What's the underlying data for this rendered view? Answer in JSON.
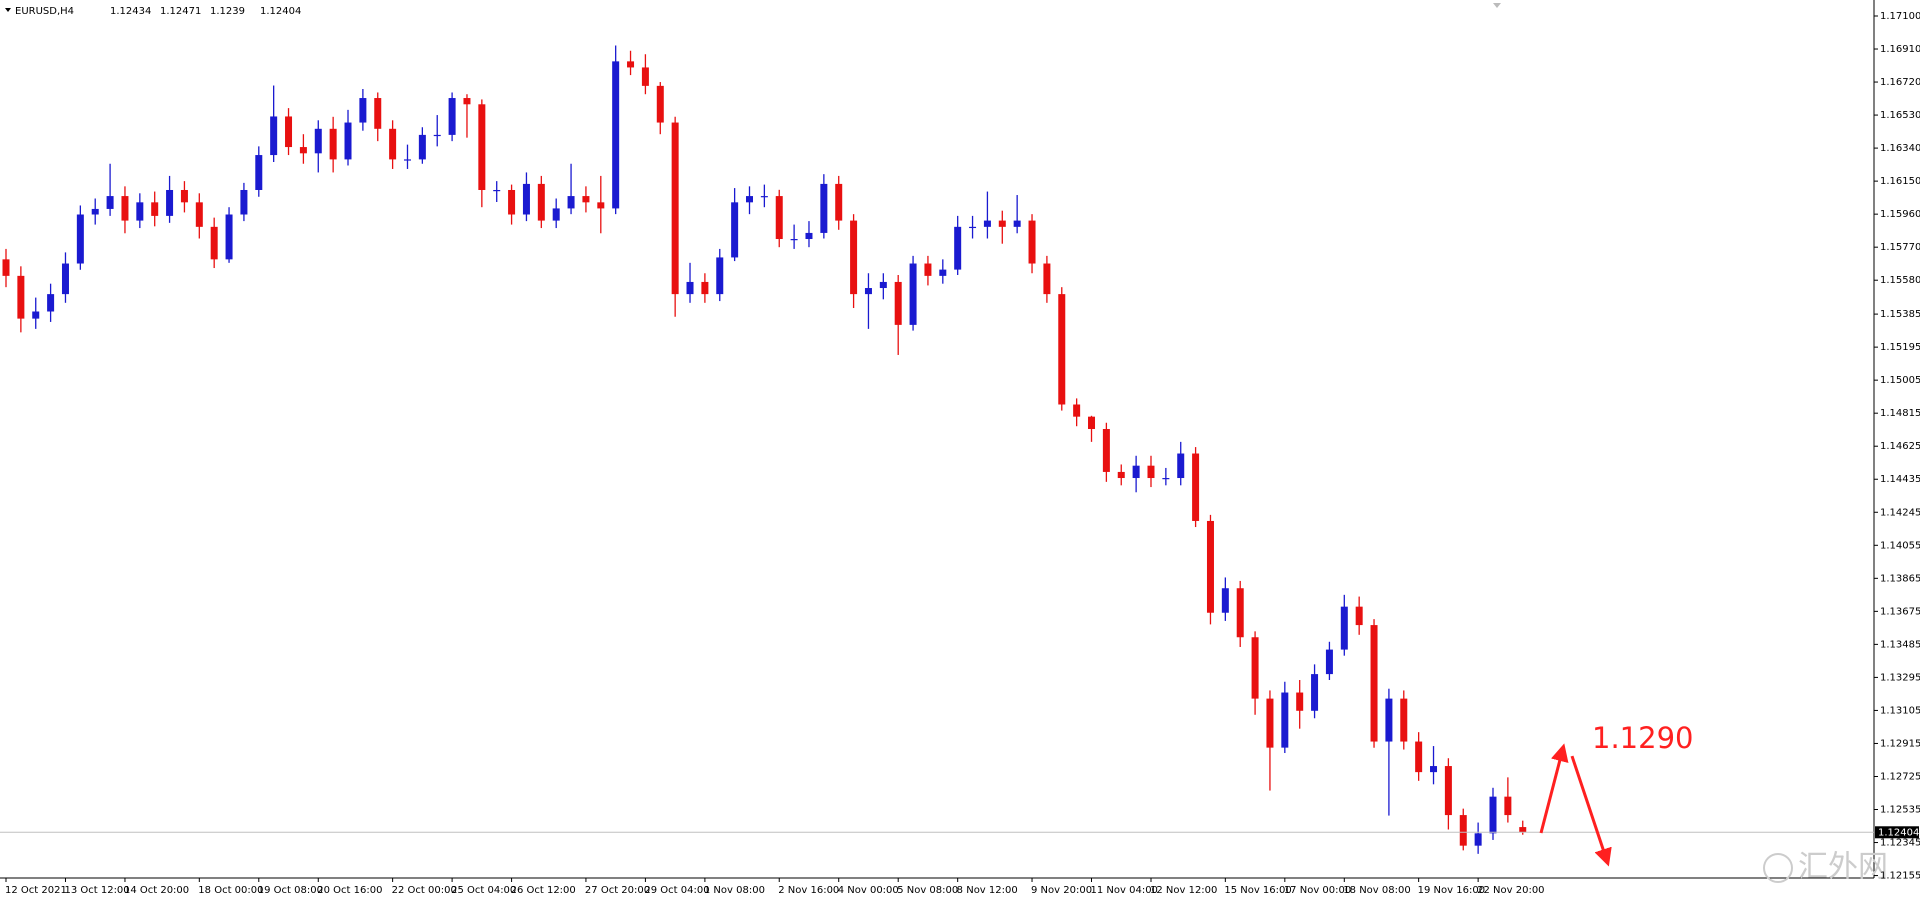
{
  "chart_data": {
    "type": "candlestick",
    "symbol": "EURUSD,H4",
    "up_color": "#1a1ad0",
    "down_color": "#e81010",
    "ylim": [
      1.12141,
      1.17192
    ],
    "yticks": [
      {
        "value": 1.171,
        "label": "1.17100"
      },
      {
        "value": 1.1691,
        "label": "1.16910"
      },
      {
        "value": 1.1672,
        "label": "1.16720"
      },
      {
        "value": 1.1653,
        "label": "1.16530"
      },
      {
        "value": 1.1634,
        "label": "1.16340"
      },
      {
        "value": 1.1615,
        "label": "1.16150"
      },
      {
        "value": 1.1596,
        "label": "1.15960"
      },
      {
        "value": 1.1577,
        "label": "1.15770"
      },
      {
        "value": 1.1558,
        "label": "1.15580"
      },
      1.15385,
      1.15195,
      1.15005,
      1.14815,
      1.14625,
      1.14435,
      1.14245,
      1.14055,
      1.13865,
      1.13675,
      1.13485,
      1.13295,
      1.13105,
      1.12915,
      1.12725,
      1.12535,
      1.12345,
      1.12155
    ],
    "categories": [
      "12 Oct 2021",
      null,
      null,
      null,
      "13 Oct 12:00",
      null,
      null,
      null,
      "14 Oct 20:00",
      null,
      null,
      null,
      null,
      "18 Oct 00:00",
      null,
      null,
      null,
      "19 Oct 08:00",
      null,
      null,
      null,
      "20 Oct 16:00",
      null,
      null,
      null,
      null,
      "22 Oct 00:00",
      null,
      null,
      null,
      "25 Oct 04:00",
      null,
      null,
      null,
      "26 Oct 12:00",
      null,
      null,
      null,
      null,
      "27 Oct 20:00",
      null,
      null,
      null,
      "29 Oct 04:00",
      null,
      null,
      null,
      "1 Nov 08:00",
      null,
      null,
      null,
      null,
      "2 Nov 16:00",
      null,
      null,
      null,
      "4 Nov 00:00",
      null,
      null,
      null,
      "5 Nov 08:00",
      null,
      null,
      null,
      "8 Nov 12:00",
      null,
      null,
      null,
      null,
      "9 Nov 20:00",
      null,
      null,
      null,
      "11 Nov 04:00",
      null,
      null,
      null,
      "12 Nov 12:00",
      null,
      null,
      null,
      null,
      "15 Nov 16:00",
      null,
      null,
      null,
      "17 Nov 00:00",
      null,
      null,
      null,
      "18 Nov 08:00",
      null,
      null,
      null,
      null,
      "19 Nov 16:00",
      null,
      null,
      null,
      "22 Nov 20:00",
      null,
      null,
      null
    ],
    "open": [
      1.157,
      1.15605,
      1.15359,
      1.154,
      1.155,
      1.15676,
      1.15958,
      1.1599,
      1.16064,
      1.15923,
      1.16028,
      1.1595,
      1.16099,
      1.16028,
      1.15887,
      1.157,
      1.15958,
      1.16099,
      1.163,
      1.16522,
      1.16346,
      1.1631,
      1.16451,
      1.16275,
      1.16487,
      1.16628,
      1.16451,
      1.16275,
      1.16275,
      1.16416,
      1.16416,
      1.16628,
      1.16592,
      1.16099,
      1.16099,
      1.15958,
      1.16134,
      1.15923,
      1.15993,
      1.16064,
      1.16028,
      1.15993,
      1.16839,
      1.16804,
      1.16698,
      1.16487,
      1.155,
      1.1557,
      1.155,
      1.15711,
      1.16028,
      1.16064,
      1.16064,
      1.15817,
      1.15817,
      1.15852,
      1.16134,
      1.15923,
      1.155,
      1.15535,
      1.1557,
      1.15323,
      1.15676,
      1.15605,
      1.15641,
      1.15887,
      1.15887,
      1.15923,
      1.15887,
      1.15923,
      1.15676,
      1.155,
      1.14865,
      1.14795,
      1.14724,
      1.14477,
      1.14442,
      1.14513,
      1.14442,
      1.14442,
      1.14583,
      1.14195,
      1.13667,
      1.13808,
      1.13526,
      1.13173,
      1.12891,
      1.13208,
      1.13103,
      1.13314,
      1.13455,
      1.13702,
      1.13596,
      1.12926,
      1.13173,
      1.12926,
      1.1275,
      1.12785,
      1.12503,
      1.12327,
      1.12398,
      1.12609,
      1.12434
    ],
    "high": [
      1.1576,
      1.1566,
      1.1548,
      1.1556,
      1.1574,
      1.1601,
      1.1605,
      1.1625,
      1.1612,
      1.1608,
      1.1609,
      1.1618,
      1.1615,
      1.1608,
      1.1594,
      1.16,
      1.1614,
      1.1635,
      1.167,
      1.1657,
      1.1642,
      1.165,
      1.1652,
      1.1656,
      1.1668,
      1.1666,
      1.165,
      1.1636,
      1.1646,
      1.1653,
      1.1666,
      1.1665,
      1.1662,
      1.1615,
      1.1613,
      1.162,
      1.1618,
      1.1605,
      1.1625,
      1.1612,
      1.1618,
      1.1693,
      1.169,
      1.1688,
      1.1672,
      1.1652,
      1.1568,
      1.1562,
      1.1576,
      1.1611,
      1.1612,
      1.1613,
      1.161,
      1.159,
      1.1592,
      1.1619,
      1.1618,
      1.1596,
      1.1562,
      1.1562,
      1.1561,
      1.1572,
      1.1572,
      1.157,
      1.1595,
      1.1595,
      1.1609,
      1.1598,
      1.1607,
      1.1596,
      1.1572,
      1.1554,
      1.149,
      1.148,
      1.1476,
      1.1452,
      1.1457,
      1.1457,
      1.145,
      1.1465,
      1.1462,
      1.1423,
      1.1387,
      1.1385,
      1.1356,
      1.1322,
      1.1327,
      1.1328,
      1.1337,
      1.135,
      1.1377,
      1.1376,
      1.1363,
      1.1323,
      1.1322,
      1.1298,
      1.129,
      1.1283,
      1.1254,
      1.1246,
      1.1266,
      1.1272,
      1.12471
    ],
    "low": [
      1.1554,
      1.1528,
      1.153,
      1.1534,
      1.1545,
      1.1564,
      1.159,
      1.1595,
      1.1585,
      1.1588,
      1.1589,
      1.1591,
      1.1597,
      1.1582,
      1.1565,
      1.1568,
      1.1592,
      1.1606,
      1.1626,
      1.163,
      1.1625,
      1.162,
      1.162,
      1.1624,
      1.1644,
      1.1638,
      1.1622,
      1.1622,
      1.1625,
      1.1635,
      1.1638,
      1.164,
      1.16,
      1.1603,
      1.159,
      1.1592,
      1.1588,
      1.1588,
      1.1596,
      1.1597,
      1.1585,
      1.1596,
      1.1676,
      1.1665,
      1.1642,
      1.1537,
      1.1545,
      1.1545,
      1.1546,
      1.1569,
      1.1596,
      1.16,
      1.1577,
      1.1576,
      1.1577,
      1.1582,
      1.1587,
      1.1542,
      1.153,
      1.1547,
      1.1515,
      1.1529,
      1.1555,
      1.1556,
      1.1561,
      1.1582,
      1.1582,
      1.1579,
      1.1585,
      1.1562,
      1.1545,
      1.1483,
      1.1474,
      1.1465,
      1.1442,
      1.144,
      1.1436,
      1.1439,
      1.144,
      1.144,
      1.1416,
      1.136,
      1.1362,
      1.1347,
      1.1308,
      1.12644,
      1.1286,
      1.13,
      1.1306,
      1.1328,
      1.1342,
      1.1354,
      1.1289,
      1.125,
      1.1288,
      1.127,
      1.1268,
      1.1242,
      1.123,
      1.1228,
      1.1236,
      1.1246,
      1.1239
    ],
    "close": [
      1.15605,
      1.15359,
      1.154,
      1.155,
      1.15676,
      1.15958,
      1.1599,
      1.16064,
      1.15923,
      1.16028,
      1.1595,
      1.16099,
      1.16028,
      1.15887,
      1.157,
      1.15958,
      1.16099,
      1.163,
      1.16522,
      1.16346,
      1.1631,
      1.16451,
      1.16275,
      1.16487,
      1.16628,
      1.16451,
      1.16275,
      1.16275,
      1.16416,
      1.16416,
      1.16628,
      1.16592,
      1.16099,
      1.16099,
      1.15958,
      1.16134,
      1.15923,
      1.15993,
      1.16064,
      1.16028,
      1.15993,
      1.16839,
      1.16804,
      1.16698,
      1.16487,
      1.155,
      1.1557,
      1.155,
      1.15711,
      1.16028,
      1.16064,
      1.16064,
      1.15817,
      1.15817,
      1.15852,
      1.16134,
      1.15923,
      1.155,
      1.15535,
      1.1557,
      1.15323,
      1.15676,
      1.15605,
      1.15641,
      1.15887,
      1.15887,
      1.15923,
      1.15887,
      1.15923,
      1.15676,
      1.155,
      1.14865,
      1.14795,
      1.14724,
      1.14477,
      1.14442,
      1.14513,
      1.14442,
      1.14442,
      1.14583,
      1.14195,
      1.13667,
      1.13808,
      1.13526,
      1.13173,
      1.12891,
      1.13208,
      1.13103,
      1.13314,
      1.13455,
      1.13702,
      1.13596,
      1.12926,
      1.13173,
      1.12926,
      1.1275,
      1.12785,
      1.12503,
      1.12327,
      1.12398,
      1.12609,
      1.12503,
      1.12404
    ],
    "annotation": {
      "value": 1.129,
      "label": "1.1290"
    },
    "annotation_color": "#ff2020",
    "watermark": "汇外网"
  }
}
